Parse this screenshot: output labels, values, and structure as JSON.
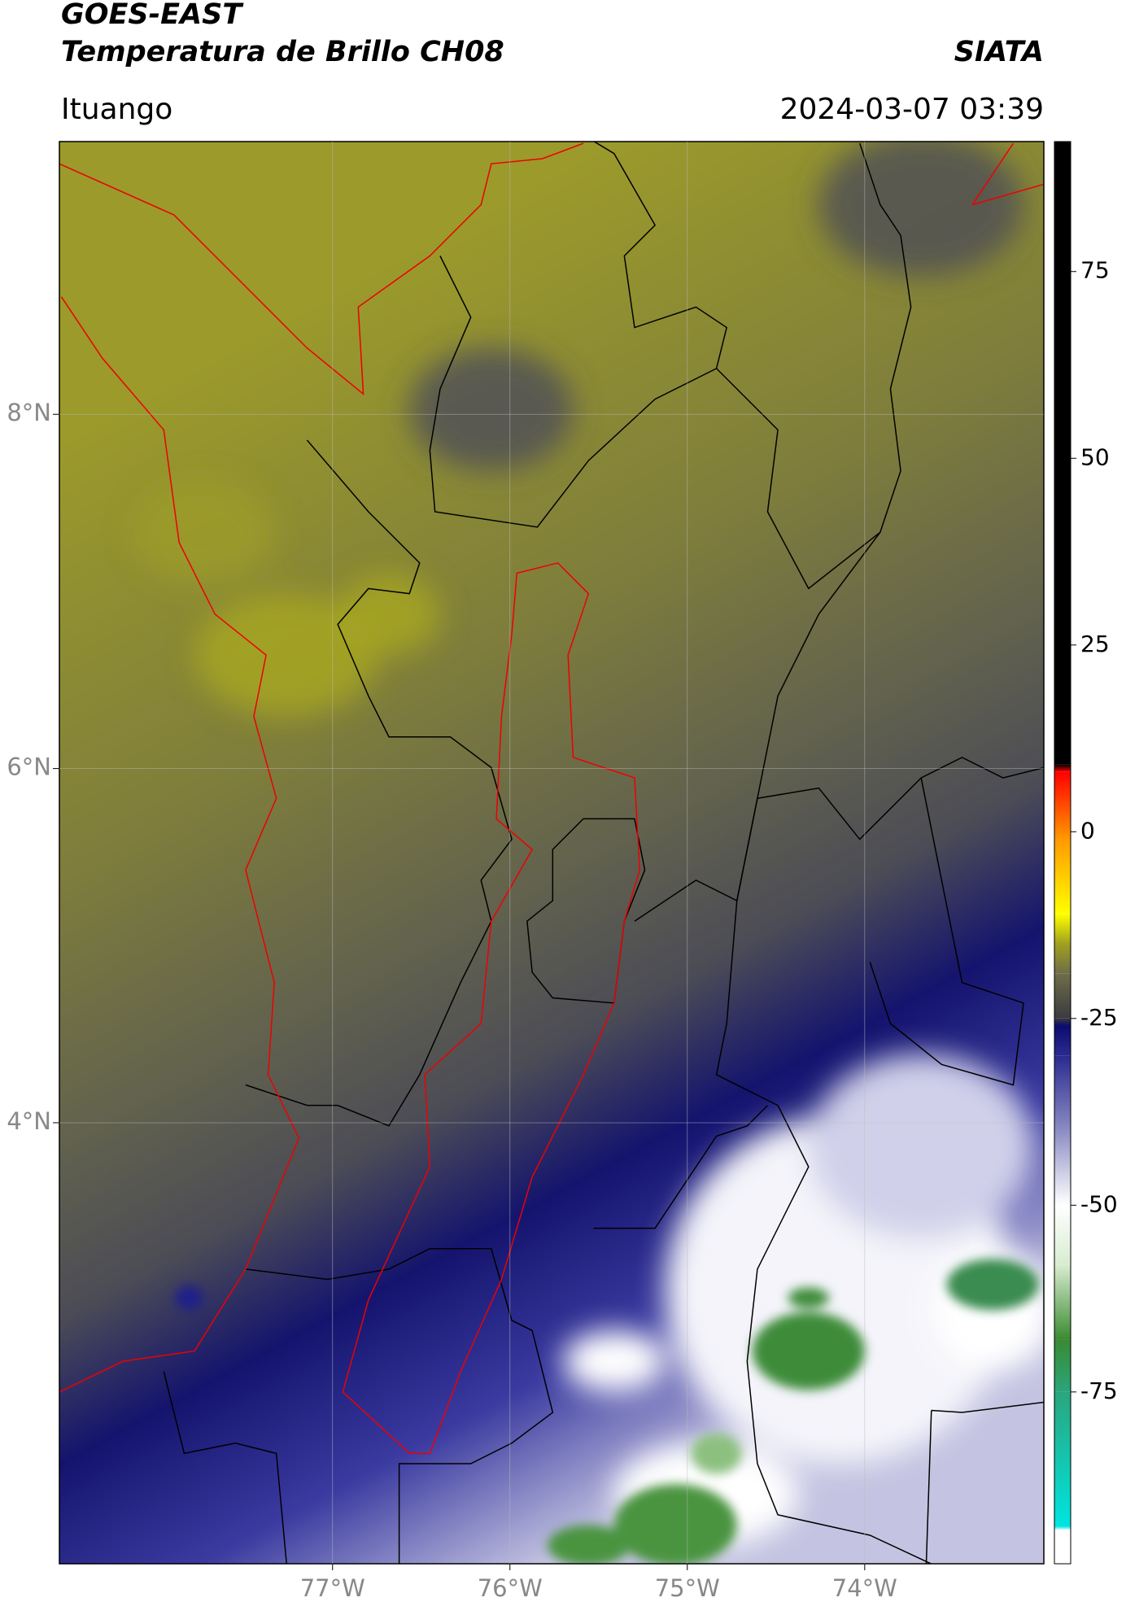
{
  "header": {
    "satellite": "GOES-EAST",
    "product": "Temperatura de Brillo CH08",
    "source": "SIATA",
    "location": "Ituango",
    "datetime": "2024-03-07 03:39"
  },
  "map": {
    "type": "map",
    "xlim": [
      -78.54,
      -72.99
    ],
    "ylim": [
      1.51,
      9.54
    ],
    "xticks": [
      {
        "value": -77,
        "label": "77°W"
      },
      {
        "value": -76,
        "label": "76°W"
      },
      {
        "value": -75,
        "label": "75°W"
      },
      {
        "value": -74,
        "label": "74°W"
      }
    ],
    "yticks": [
      {
        "value": 8,
        "label": "8°N"
      },
      {
        "value": 6,
        "label": "6°N"
      },
      {
        "value": 4,
        "label": "4°N"
      }
    ],
    "grid": true
  },
  "colorbar": {
    "lim": [
      -98,
      92.4
    ],
    "ticks": [
      75,
      50,
      25,
      0,
      -25,
      -50,
      -75
    ],
    "stops": [
      {
        "value": -98,
        "color": "#ffffff"
      },
      {
        "value": -93.5,
        "color": "#ffffff"
      },
      {
        "value": -93,
        "color": "#00e5e0"
      },
      {
        "value": -75,
        "color": "#2aa57c"
      },
      {
        "value": -68,
        "color": "#3a8a30"
      },
      {
        "value": -58,
        "color": "#d8ecd0"
      },
      {
        "value": -50,
        "color": "#ffffff"
      },
      {
        "value": -40,
        "color": "#8c8cc4"
      },
      {
        "value": -30,
        "color": "#2a2a90"
      },
      {
        "value": -26,
        "color": "#0c0c70"
      },
      {
        "value": -25,
        "color": "#3a3a40"
      },
      {
        "value": -19,
        "color": "#6e6e48"
      },
      {
        "value": -15,
        "color": "#a0a020"
      },
      {
        "value": -11,
        "color": "#ffff00"
      },
      {
        "value": -1,
        "color": "#ff9900"
      },
      {
        "value": 8,
        "color": "#ff0000"
      },
      {
        "value": 9,
        "color": "#000000"
      },
      {
        "value": 92.4,
        "color": "#000000"
      }
    ]
  }
}
